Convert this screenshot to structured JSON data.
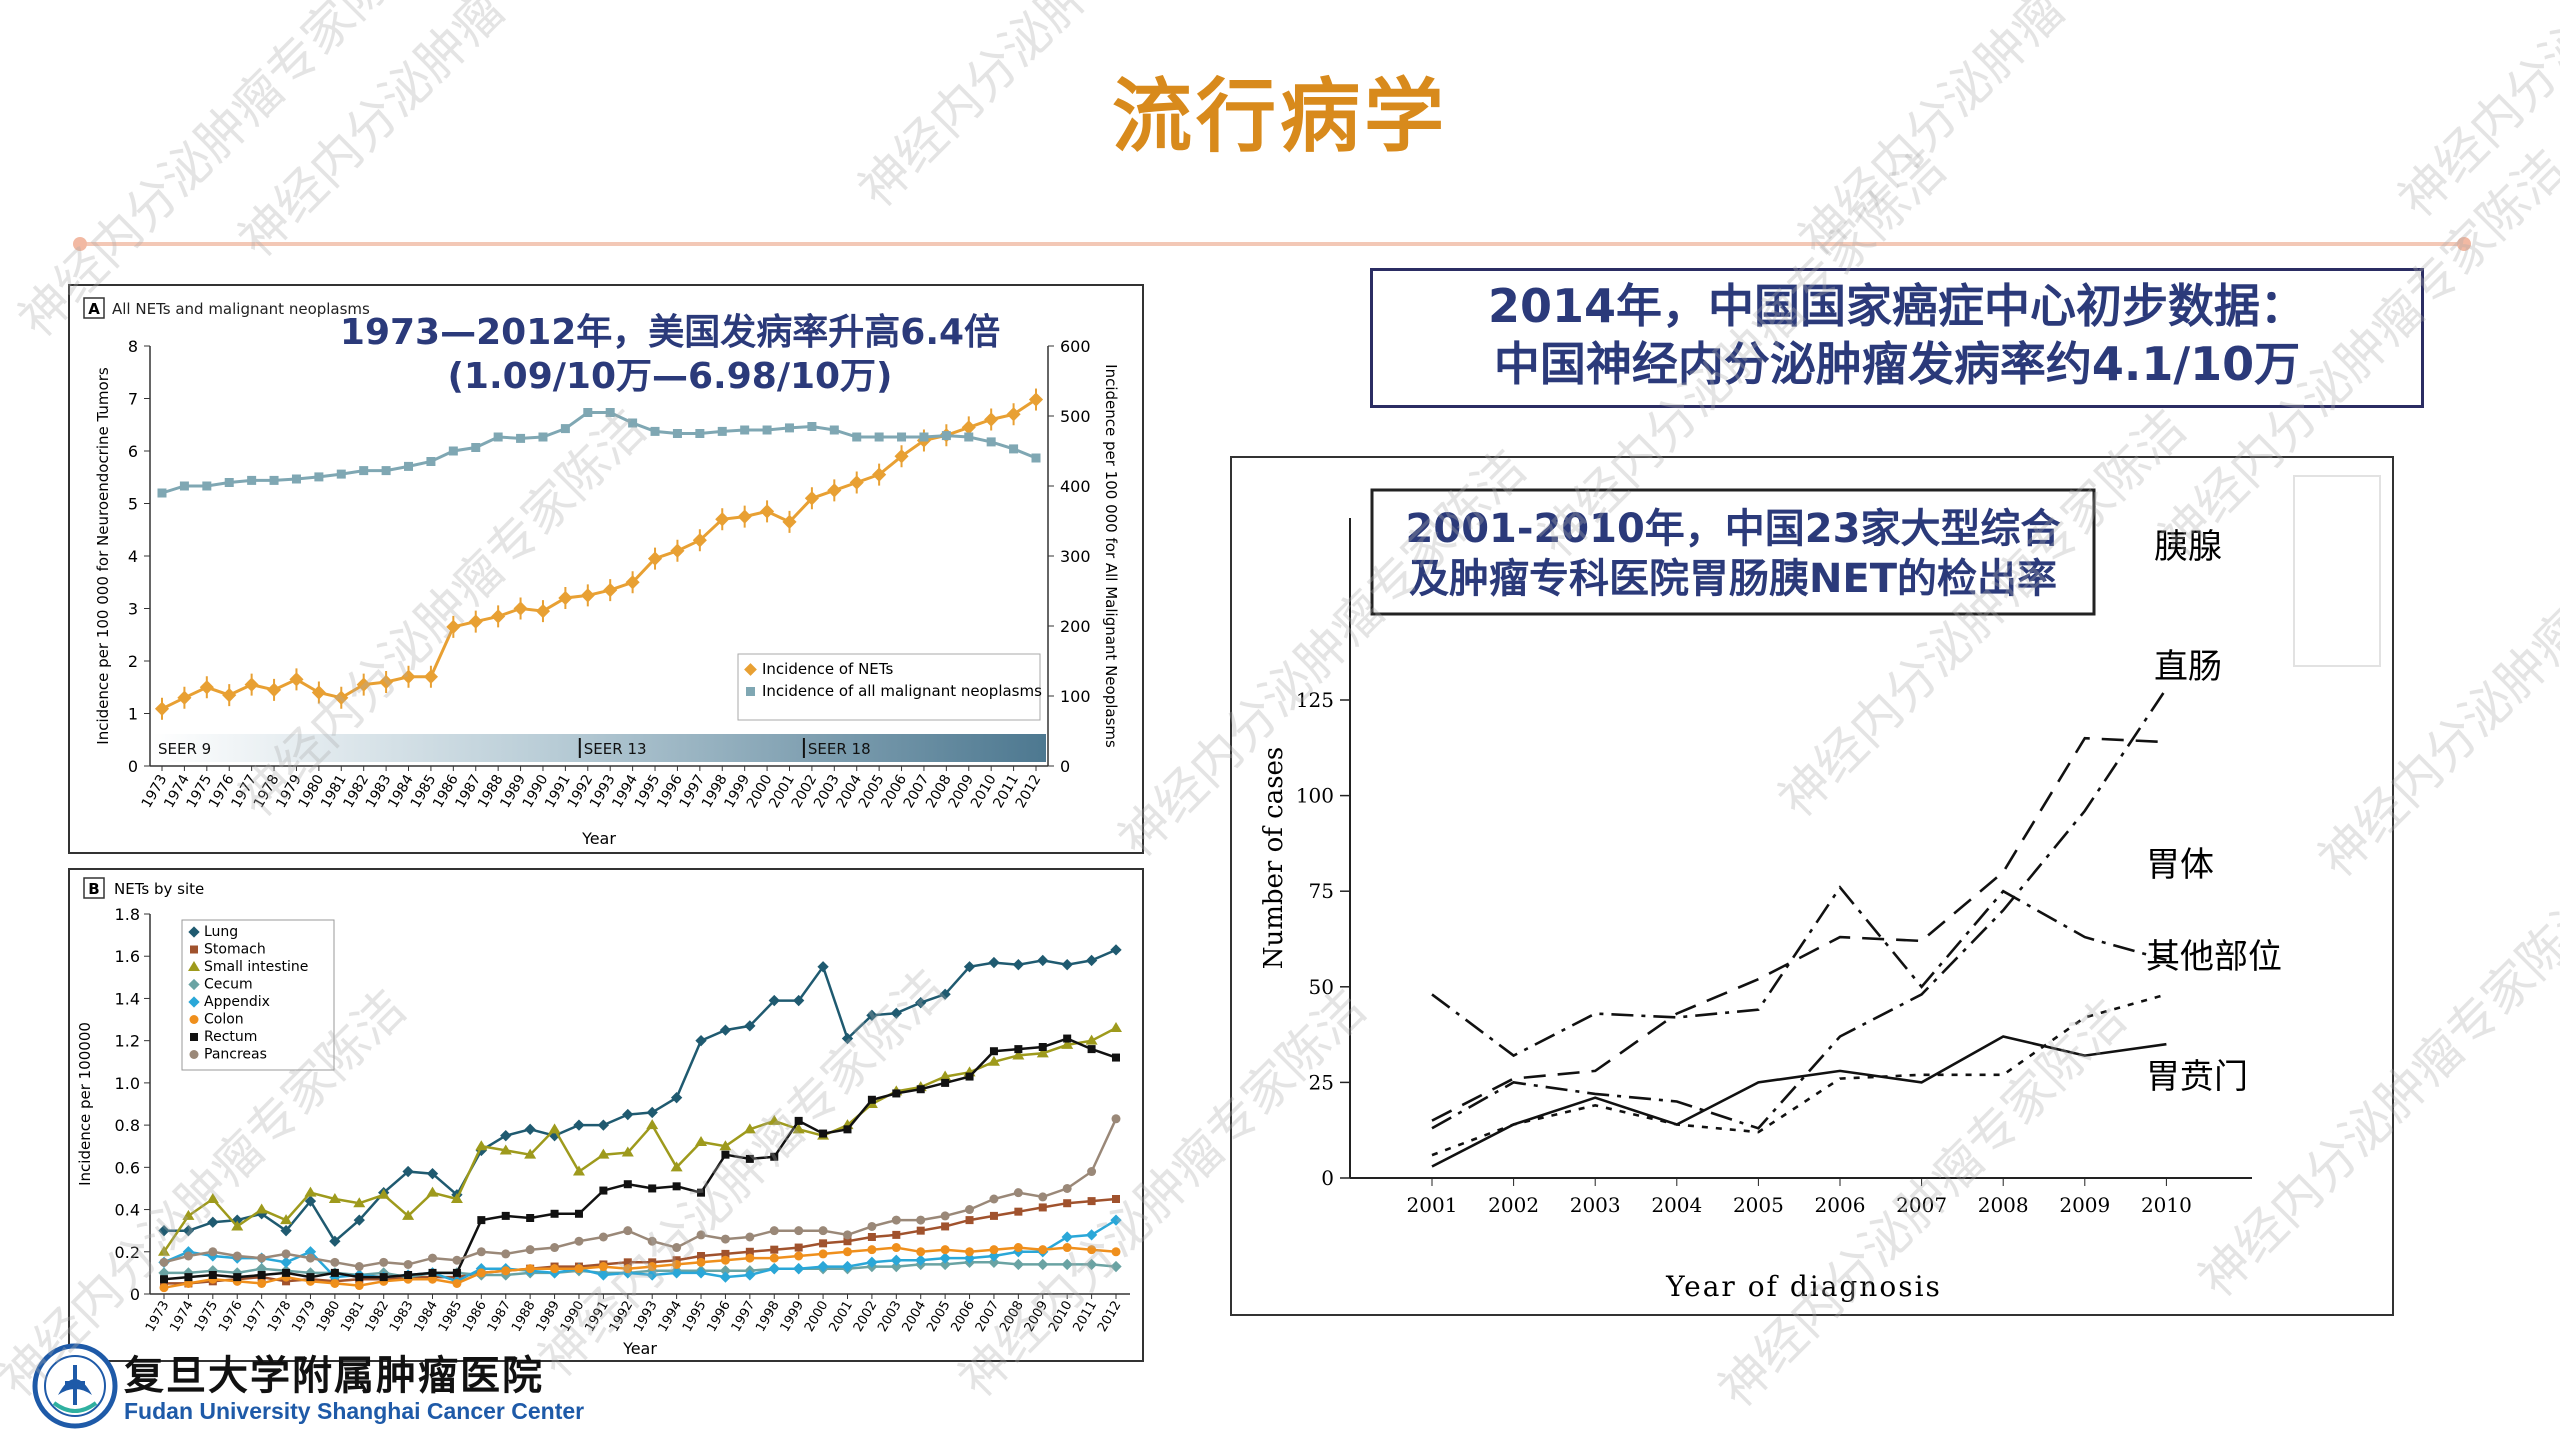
{
  "page_title": "流行病学",
  "logo": {
    "name_cn": "复旦大学附属肿瘤医院",
    "name_en": "Fudan University Shanghai Cancer Center",
    "icon": "hospital-emblem-icon"
  },
  "watermark_text": "神经内分泌肿瘤专家陈洁",
  "colors": {
    "title": "#d88a1c",
    "navy": "#2b3a7a",
    "nets_orange": "#e8a033",
    "all_blue": "#7fa7b3"
  },
  "china_box": {
    "line1": "2014年，中国国家癌症中心初步数据：",
    "line2": "中国神经内分泌肿瘤发病率约4.1/10万"
  },
  "chart_data": [
    {
      "id": "A",
      "type": "line",
      "panel_label": "A",
      "title": "All NETs and malignant neoplasms",
      "annotation_line1": "1973—2012年，美国发病率升高6.4倍",
      "annotation_line2": "(1.09/10万—6.98/10万)",
      "xlabel": "Year",
      "ylabel": "Incidence per 100 000 for Neuroendocrine Tumors",
      "y2label": "Incidence per 100 000 for All Malignant Neoplasms",
      "ylim": [
        0,
        8
      ],
      "y2lim": [
        0,
        600
      ],
      "yticks": [
        "0",
        "1",
        "2",
        "3",
        "4",
        "5",
        "6",
        "7",
        "8"
      ],
      "y2ticks": [
        "0",
        "100",
        "200",
        "300",
        "400",
        "500",
        "600"
      ],
      "x": [
        "1973",
        "1974",
        "1975",
        "1976",
        "1977",
        "1978",
        "1979",
        "1980",
        "1981",
        "1982",
        "1983",
        "1984",
        "1985",
        "1986",
        "1987",
        "1988",
        "1989",
        "1990",
        "1991",
        "1992",
        "1993",
        "1994",
        "1995",
        "1996",
        "1997",
        "1998",
        "1999",
        "2000",
        "2001",
        "2002",
        "2003",
        "2004",
        "2005",
        "2006",
        "2007",
        "2008",
        "2009",
        "2010",
        "2011",
        "2012"
      ],
      "seer_bands": [
        "SEER 9",
        "SEER 13",
        "SEER 18"
      ],
      "legend": "bottom-right",
      "series": [
        {
          "name": "Incidence of NETs",
          "axis": "left",
          "color": "#e8a033",
          "values": [
            1.09,
            1.3,
            1.5,
            1.35,
            1.55,
            1.45,
            1.65,
            1.4,
            1.3,
            1.55,
            1.6,
            1.7,
            1.7,
            2.65,
            2.75,
            2.85,
            3.0,
            2.95,
            3.2,
            3.25,
            3.35,
            3.5,
            3.95,
            4.1,
            4.3,
            4.7,
            4.75,
            4.85,
            4.65,
            5.1,
            5.25,
            5.4,
            5.55,
            5.9,
            6.2,
            6.3,
            6.45,
            6.6,
            6.7,
            6.98
          ]
        },
        {
          "name": "Incidence of all malignant neoplasms",
          "axis": "right",
          "color": "#7fa7b3",
          "values": [
            390,
            400,
            400,
            405,
            408,
            408,
            410,
            413,
            417,
            422,
            422,
            428,
            435,
            450,
            455,
            470,
            468,
            470,
            482,
            505,
            505,
            490,
            478,
            475,
            475,
            478,
            480,
            480,
            483,
            485,
            480,
            470,
            470,
            470,
            470,
            472,
            470,
            463,
            453,
            440
          ]
        }
      ]
    },
    {
      "id": "B",
      "type": "line",
      "panel_label": "B",
      "title": "NETs by site",
      "xlabel": "Year",
      "ylabel": "Incidence per 100000",
      "ylim": [
        0,
        1.8
      ],
      "yticks": [
        "0",
        "0.2",
        "0.4",
        "0.6",
        "0.8",
        "1.0",
        "1.2",
        "1.4",
        "1.6",
        "1.8"
      ],
      "x": [
        "1973",
        "1974",
        "1975",
        "1976",
        "1977",
        "1978",
        "1979",
        "1980",
        "1981",
        "1982",
        "1983",
        "1984",
        "1985",
        "1986",
        "1987",
        "1988",
        "1989",
        "1990",
        "1991",
        "1992",
        "1993",
        "1994",
        "1995",
        "1996",
        "1997",
        "1998",
        "1999",
        "2000",
        "2001",
        "2002",
        "2003",
        "2004",
        "2005",
        "2006",
        "2007",
        "2008",
        "2009",
        "2010",
        "2011",
        "2012"
      ],
      "legend": "top-left",
      "series": [
        {
          "name": "Lung",
          "color": "#1f5a70",
          "values": [
            0.3,
            0.3,
            0.34,
            0.35,
            0.38,
            0.3,
            0.44,
            0.25,
            0.35,
            0.48,
            0.58,
            0.57,
            0.47,
            0.68,
            0.75,
            0.78,
            0.75,
            0.8,
            0.8,
            0.85,
            0.86,
            0.93,
            1.2,
            1.25,
            1.27,
            1.39,
            1.39,
            1.55,
            1.21,
            1.32,
            1.33,
            1.38,
            1.42,
            1.55,
            1.57,
            1.56,
            1.58,
            1.56,
            1.58,
            1.63
          ]
        },
        {
          "name": "Stomach",
          "color": "#a0522d",
          "values": [
            0.05,
            0.05,
            0.06,
            0.07,
            0.08,
            0.06,
            0.07,
            0.06,
            0.07,
            0.07,
            0.08,
            0.08,
            0.08,
            0.1,
            0.11,
            0.12,
            0.13,
            0.13,
            0.14,
            0.15,
            0.15,
            0.16,
            0.18,
            0.19,
            0.2,
            0.21,
            0.22,
            0.24,
            0.25,
            0.27,
            0.28,
            0.3,
            0.32,
            0.35,
            0.37,
            0.39,
            0.41,
            0.43,
            0.44,
            0.45
          ]
        },
        {
          "name": "Small intestine",
          "color": "#9e9a1c",
          "values": [
            0.2,
            0.37,
            0.45,
            0.32,
            0.4,
            0.35,
            0.48,
            0.45,
            0.43,
            0.47,
            0.37,
            0.48,
            0.45,
            0.7,
            0.68,
            0.66,
            0.78,
            0.58,
            0.66,
            0.67,
            0.8,
            0.6,
            0.72,
            0.7,
            0.78,
            0.82,
            0.78,
            0.75,
            0.8,
            0.9,
            0.96,
            0.98,
            1.03,
            1.05,
            1.1,
            1.13,
            1.14,
            1.18,
            1.2,
            1.26
          ]
        },
        {
          "name": "Cecum",
          "color": "#6aa3a3",
          "values": [
            0.1,
            0.1,
            0.11,
            0.1,
            0.12,
            0.11,
            0.1,
            0.1,
            0.09,
            0.1,
            0.08,
            0.1,
            0.1,
            0.09,
            0.09,
            0.1,
            0.1,
            0.11,
            0.1,
            0.1,
            0.11,
            0.11,
            0.11,
            0.11,
            0.11,
            0.12,
            0.12,
            0.12,
            0.12,
            0.13,
            0.13,
            0.14,
            0.14,
            0.15,
            0.15,
            0.14,
            0.14,
            0.14,
            0.14,
            0.13
          ]
        },
        {
          "name": "Appendix",
          "color": "#2aa7d8",
          "values": [
            0.15,
            0.2,
            0.18,
            0.17,
            0.17,
            0.15,
            0.2,
            0.08,
            0.09,
            0.08,
            0.09,
            0.1,
            0.06,
            0.12,
            0.12,
            0.11,
            0.1,
            0.12,
            0.09,
            0.1,
            0.09,
            0.1,
            0.1,
            0.08,
            0.09,
            0.12,
            0.12,
            0.13,
            0.13,
            0.15,
            0.16,
            0.16,
            0.17,
            0.17,
            0.18,
            0.2,
            0.2,
            0.27,
            0.28,
            0.35
          ]
        },
        {
          "name": "Colon",
          "color": "#ef8f1c",
          "values": [
            0.03,
            0.05,
            0.07,
            0.06,
            0.05,
            0.08,
            0.06,
            0.05,
            0.04,
            0.06,
            0.07,
            0.07,
            0.05,
            0.1,
            0.11,
            0.12,
            0.12,
            0.12,
            0.13,
            0.12,
            0.13,
            0.14,
            0.15,
            0.16,
            0.17,
            0.17,
            0.18,
            0.19,
            0.2,
            0.21,
            0.22,
            0.2,
            0.21,
            0.2,
            0.21,
            0.22,
            0.21,
            0.22,
            0.21,
            0.2
          ]
        },
        {
          "name": "Rectum",
          "color": "#111111",
          "values": [
            0.07,
            0.08,
            0.09,
            0.08,
            0.09,
            0.1,
            0.08,
            0.1,
            0.08,
            0.08,
            0.09,
            0.1,
            0.1,
            0.35,
            0.37,
            0.36,
            0.38,
            0.38,
            0.49,
            0.52,
            0.5,
            0.51,
            0.48,
            0.66,
            0.64,
            0.65,
            0.82,
            0.76,
            0.78,
            0.92,
            0.95,
            0.97,
            1.0,
            1.03,
            1.15,
            1.16,
            1.17,
            1.21,
            1.16,
            1.12
          ]
        },
        {
          "name": "Pancreas",
          "color": "#9a8878",
          "values": [
            0.15,
            0.18,
            0.2,
            0.18,
            0.17,
            0.19,
            0.17,
            0.15,
            0.13,
            0.15,
            0.14,
            0.17,
            0.16,
            0.2,
            0.19,
            0.21,
            0.22,
            0.25,
            0.27,
            0.3,
            0.25,
            0.22,
            0.28,
            0.26,
            0.27,
            0.3,
            0.3,
            0.3,
            0.28,
            0.32,
            0.35,
            0.35,
            0.37,
            0.4,
            0.45,
            0.48,
            0.46,
            0.5,
            0.58,
            0.83
          ]
        }
      ]
    },
    {
      "id": "C",
      "type": "line",
      "annotation_line1": "2001-2010年，中国23家大型综合",
      "annotation_line2": "及肿瘤专科医院胃肠胰NET的检出率",
      "xlabel": "Year of diagnosis",
      "ylabel": "Number of cases",
      "ylim": [
        0,
        125
      ],
      "yticks": [
        "0",
        "25",
        "50",
        "75",
        "100",
        "125"
      ],
      "x": [
        "2001",
        "2002",
        "2003",
        "2004",
        "2005",
        "2006",
        "2007",
        "2008",
        "2009",
        "2010"
      ],
      "series": [
        {
          "name": "胰腺",
          "dash": "dash-dot",
          "values": [
            13,
            25,
            22,
            20,
            13,
            37,
            48,
            70,
            96,
            128
          ]
        },
        {
          "name": "直肠",
          "dash": "dashed",
          "values": [
            15,
            26,
            28,
            43,
            52,
            63,
            62,
            80,
            115,
            114
          ]
        },
        {
          "name": "胃体",
          "dash": "dash-dot",
          "values": [
            48,
            32,
            43,
            42,
            44,
            76,
            50,
            75,
            63,
            57
          ]
        },
        {
          "name": "其他部位",
          "dash": "dotted",
          "values": [
            6,
            14,
            19,
            14,
            12,
            26,
            27,
            27,
            42,
            48
          ]
        },
        {
          "name": "胃贲门",
          "dash": "solid",
          "values": [
            3,
            14,
            21,
            14,
            25,
            28,
            25,
            37,
            32,
            35
          ]
        }
      ]
    }
  ]
}
